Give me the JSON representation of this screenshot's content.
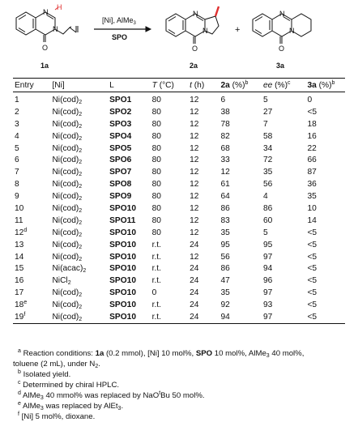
{
  "scheme": {
    "label_1a": "1a",
    "label_2a": "2a",
    "label_3a": "3a",
    "H": "H",
    "N1": "N",
    "N2": "N",
    "O": "O",
    "arrow_top": "[Ni], AlMe",
    "arrow_top_sub": "3",
    "arrow_bottom": "SPO",
    "plus": "+"
  },
  "table": {
    "headers": {
      "entry": "Entry",
      "ni": "[Ni]",
      "l": "L",
      "t_italic": "T",
      "t_unit": " (°C)",
      "time_italic": "t",
      "time_unit": " (h)",
      "y2a_bold": "2a",
      "y2a_unit": " (%)",
      "y2a_sup": "b",
      "ee_italic": "ee",
      "ee_unit": " (%)",
      "ee_sup": "c",
      "y3a_bold": "3a",
      "y3a_unit": " (%)",
      "y3a_sup": "b"
    },
    "rows": [
      {
        "entry": "1",
        "sup": "",
        "ni": "Ni(cod)",
        "nisub": "2",
        "l": "SPO1",
        "T": "80",
        "t": "12",
        "y2a": "6",
        "ee": "5",
        "y3a": "0"
      },
      {
        "entry": "2",
        "sup": "",
        "ni": "Ni(cod)",
        "nisub": "2",
        "l": "SPO2",
        "T": "80",
        "t": "12",
        "y2a": "38",
        "ee": "27",
        "y3a": "<5"
      },
      {
        "entry": "3",
        "sup": "",
        "ni": "Ni(cod)",
        "nisub": "2",
        "l": "SPO3",
        "T": "80",
        "t": "12",
        "y2a": "78",
        "ee": "7",
        "y3a": "18"
      },
      {
        "entry": "4",
        "sup": "",
        "ni": "Ni(cod)",
        "nisub": "2",
        "l": "SPO4",
        "T": "80",
        "t": "12",
        "y2a": "82",
        "ee": "58",
        "y3a": "16"
      },
      {
        "entry": "5",
        "sup": "",
        "ni": "Ni(cod)",
        "nisub": "2",
        "l": "SPO5",
        "T": "80",
        "t": "12",
        "y2a": "68",
        "ee": "34",
        "y3a": "22"
      },
      {
        "entry": "6",
        "sup": "",
        "ni": "Ni(cod)",
        "nisub": "2",
        "l": "SPO6",
        "T": "80",
        "t": "12",
        "y2a": "33",
        "ee": "72",
        "y3a": "66"
      },
      {
        "entry": "7",
        "sup": "",
        "ni": "Ni(cod)",
        "nisub": "2",
        "l": "SPO7",
        "T": "80",
        "t": "12",
        "y2a": "12",
        "ee": "35",
        "y3a": "87"
      },
      {
        "entry": "8",
        "sup": "",
        "ni": "Ni(cod)",
        "nisub": "2",
        "l": "SPO8",
        "T": "80",
        "t": "12",
        "y2a": "61",
        "ee": "56",
        "y3a": "36"
      },
      {
        "entry": "9",
        "sup": "",
        "ni": "Ni(cod)",
        "nisub": "2",
        "l": "SPO9",
        "T": "80",
        "t": "12",
        "y2a": "64",
        "ee": "4",
        "y3a": "35"
      },
      {
        "entry": "10",
        "sup": "",
        "ni": "Ni(cod)",
        "nisub": "2",
        "l": "SPO10",
        "T": "80",
        "t": "12",
        "y2a": "86",
        "ee": "86",
        "y3a": "10"
      },
      {
        "entry": "11",
        "sup": "",
        "ni": "Ni(cod)",
        "nisub": "2",
        "l": "SPO11",
        "T": "80",
        "t": "12",
        "y2a": "83",
        "ee": "60",
        "y3a": "14"
      },
      {
        "entry": "12",
        "sup": "d",
        "ni": "Ni(cod)",
        "nisub": "2",
        "l": "SPO10",
        "T": "80",
        "t": "12",
        "y2a": "35",
        "ee": "5",
        "y3a": "<5"
      },
      {
        "entry": "13",
        "sup": "",
        "ni": "Ni(cod)",
        "nisub": "2",
        "l": "SPO10",
        "T": "r.t.",
        "t": "24",
        "y2a": "95",
        "ee": "95",
        "y3a": "<5"
      },
      {
        "entry": "14",
        "sup": "",
        "ni": "Ni(cod)",
        "nisub": "2",
        "l": "SPO10",
        "T": "r.t.",
        "t": "12",
        "y2a": "56",
        "ee": "97",
        "y3a": "<5"
      },
      {
        "entry": "15",
        "sup": "",
        "ni": "Ni(acac)",
        "nisub": "2",
        "l": "SPO10",
        "T": "r.t.",
        "t": "24",
        "y2a": "86",
        "ee": "94",
        "y3a": "<5"
      },
      {
        "entry": "16",
        "sup": "",
        "ni": "NiCl",
        "nisub": "2",
        "l": "SPO10",
        "T": "r.t.",
        "t": "24",
        "y2a": "47",
        "ee": "96",
        "y3a": "<5"
      },
      {
        "entry": "17",
        "sup": "",
        "ni": "Ni(cod)",
        "nisub": "2",
        "l": "SPO10",
        "T": "0",
        "t": "24",
        "y2a": "35",
        "ee": "97",
        "y3a": "<5"
      },
      {
        "entry": "18",
        "sup": "e",
        "ni": "Ni(cod)",
        "nisub": "2",
        "l": "SPO10",
        "T": "r.t.",
        "t": "24",
        "y2a": "92",
        "ee": "93",
        "y3a": "<5"
      },
      {
        "entry": "19",
        "sup": "f",
        "ni": "Ni(cod)",
        "nisub": "2",
        "l": "SPO10",
        "T": "r.t.",
        "t": "24",
        "y2a": "94",
        "ee": "97",
        "y3a": "<5"
      }
    ]
  },
  "footnotes": {
    "a": {
      "mark": "a",
      "t1": " Reaction conditions: ",
      "b1": "1a",
      "t2": " (0.2 mmol), [Ni] 10 mol%, ",
      "b2": "SPO",
      "t3": " 10 mol%, AlMe",
      "s1": "3",
      "t4": " 40 mol%,",
      "l2a": "toluene (2 mL), under N",
      "l2s": "2",
      "l2b": "."
    },
    "b": {
      "mark": "b",
      "text": " Isolated yield."
    },
    "c": {
      "mark": "c",
      "text": " Determined by chiral HPLC."
    },
    "d": {
      "mark": "d",
      "t1": " AlMe",
      "s1": "3",
      "t2": " 40 mmol% was replaced by NaO",
      "sup": "t",
      "t3": "Bu 50 mol%."
    },
    "e": {
      "mark": "e",
      "t1": " AlMe",
      "s1": "3",
      "t2": " was replaced by AlEt",
      "s2": "3",
      "t3": "."
    },
    "f": {
      "mark": "f",
      "text": " [Ni] 5 mol%, dioxane."
    }
  }
}
